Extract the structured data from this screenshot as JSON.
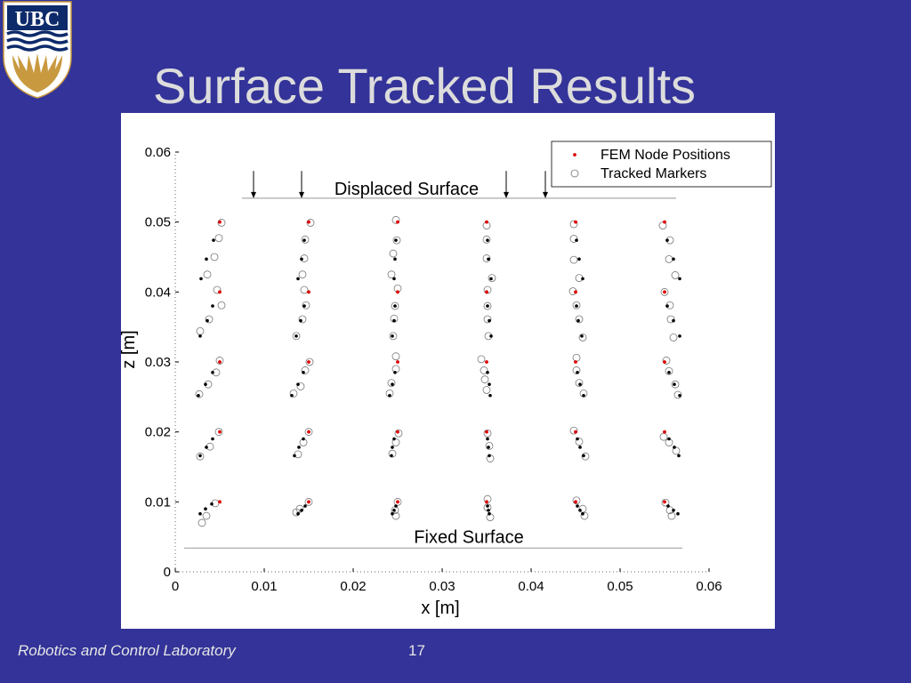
{
  "slide": {
    "title": "Surface Tracked Results",
    "logo_text": "UBC",
    "footer_lab": "Robotics and Control Laboratory",
    "page_number": "17"
  },
  "colors": {
    "background": "#333399",
    "title": "#dcdcdc",
    "fem": "#dd0000",
    "tracked": "#000000",
    "logo_blue": "#0d2a6b",
    "logo_gold": "#c8993f"
  },
  "chart_data": {
    "type": "scatter",
    "title": "",
    "xlabel": "x [m]",
    "ylabel": "z [m]",
    "xlim": [
      0,
      0.06
    ],
    "ylim": [
      0,
      0.06
    ],
    "xticks": [
      "0",
      "0.01",
      "0.02",
      "0.03",
      "0.04",
      "0.05",
      "0.06"
    ],
    "yticks": [
      "0",
      "0.01",
      "0.02",
      "0.03",
      "0.04",
      "0.05",
      "0.06"
    ],
    "grid": false,
    "legend_position": "top-right",
    "legend": [
      "FEM Node Positions",
      "Tracked Markers"
    ],
    "annotations": {
      "displaced_surface": "Displaced Surface",
      "fixed_surface": "Fixed Surface"
    },
    "surface_arrows_x": [
      0.0088,
      0.0142,
      0.0372,
      0.0416
    ],
    "fem_nodes": [
      [
        0.005,
        0.05
      ],
      [
        0.015,
        0.05
      ],
      [
        0.025,
        0.05
      ],
      [
        0.035,
        0.05
      ],
      [
        0.045,
        0.05
      ],
      [
        0.055,
        0.05
      ],
      [
        0.005,
        0.04
      ],
      [
        0.015,
        0.04
      ],
      [
        0.025,
        0.04
      ],
      [
        0.035,
        0.04
      ],
      [
        0.045,
        0.04
      ],
      [
        0.055,
        0.04
      ],
      [
        0.005,
        0.03
      ],
      [
        0.015,
        0.03
      ],
      [
        0.025,
        0.03
      ],
      [
        0.035,
        0.03
      ],
      [
        0.045,
        0.03
      ],
      [
        0.055,
        0.03
      ],
      [
        0.005,
        0.02
      ],
      [
        0.015,
        0.02
      ],
      [
        0.025,
        0.02
      ],
      [
        0.035,
        0.02
      ],
      [
        0.045,
        0.02
      ],
      [
        0.055,
        0.02
      ],
      [
        0.005,
        0.01
      ],
      [
        0.015,
        0.01
      ],
      [
        0.025,
        0.01
      ],
      [
        0.035,
        0.01
      ],
      [
        0.045,
        0.01
      ],
      [
        0.055,
        0.01
      ]
    ],
    "tracked_filled": [
      [
        0.0043,
        0.0474
      ],
      [
        0.0035,
        0.0447
      ],
      [
        0.0029,
        0.0419
      ],
      [
        0.0042,
        0.038
      ],
      [
        0.0036,
        0.0359
      ],
      [
        0.0028,
        0.0337
      ],
      [
        0.0042,
        0.0285
      ],
      [
        0.0034,
        0.0268
      ],
      [
        0.0026,
        0.0252
      ],
      [
        0.0042,
        0.019
      ],
      [
        0.0035,
        0.0178
      ],
      [
        0.0028,
        0.0166
      ],
      [
        0.0041,
        0.0097
      ],
      [
        0.0034,
        0.009
      ],
      [
        0.0028,
        0.0083
      ],
      [
        0.0145,
        0.0474
      ],
      [
        0.0142,
        0.0447
      ],
      [
        0.0138,
        0.0419
      ],
      [
        0.0145,
        0.038
      ],
      [
        0.0141,
        0.0359
      ],
      [
        0.0136,
        0.0337
      ],
      [
        0.0144,
        0.0285
      ],
      [
        0.0138,
        0.0268
      ],
      [
        0.0131,
        0.0252
      ],
      [
        0.0144,
        0.019
      ],
      [
        0.0139,
        0.0178
      ],
      [
        0.0134,
        0.0166
      ],
      [
        0.0146,
        0.0094
      ],
      [
        0.0142,
        0.0088
      ],
      [
        0.0138,
        0.0083
      ],
      [
        0.0248,
        0.0474
      ],
      [
        0.0247,
        0.0447
      ],
      [
        0.0246,
        0.0419
      ],
      [
        0.0247,
        0.038
      ],
      [
        0.0246,
        0.0359
      ],
      [
        0.0244,
        0.0337
      ],
      [
        0.0247,
        0.0285
      ],
      [
        0.0244,
        0.0268
      ],
      [
        0.0241,
        0.0252
      ],
      [
        0.0246,
        0.019
      ],
      [
        0.0244,
        0.0178
      ],
      [
        0.0243,
        0.0166
      ],
      [
        0.0248,
        0.0094
      ],
      [
        0.0246,
        0.0088
      ],
      [
        0.0244,
        0.0083
      ],
      [
        0.0351,
        0.0474
      ],
      [
        0.0352,
        0.0447
      ],
      [
        0.0355,
        0.0419
      ],
      [
        0.0351,
        0.038
      ],
      [
        0.0353,
        0.0359
      ],
      [
        0.0355,
        0.0337
      ],
      [
        0.0351,
        0.0285
      ],
      [
        0.0353,
        0.0268
      ],
      [
        0.0354,
        0.0252
      ],
      [
        0.0351,
        0.019
      ],
      [
        0.0352,
        0.0178
      ],
      [
        0.0353,
        0.0166
      ],
      [
        0.0351,
        0.0094
      ],
      [
        0.0352,
        0.0088
      ],
      [
        0.0353,
        0.0083
      ],
      [
        0.0451,
        0.0474
      ],
      [
        0.0454,
        0.0447
      ],
      [
        0.0458,
        0.0419
      ],
      [
        0.0451,
        0.038
      ],
      [
        0.0453,
        0.0359
      ],
      [
        0.0457,
        0.0337
      ],
      [
        0.0452,
        0.0285
      ],
      [
        0.0455,
        0.0268
      ],
      [
        0.0459,
        0.0252
      ],
      [
        0.0452,
        0.019
      ],
      [
        0.0455,
        0.0178
      ],
      [
        0.0459,
        0.0166
      ],
      [
        0.0452,
        0.0094
      ],
      [
        0.0455,
        0.0088
      ],
      [
        0.0458,
        0.0083
      ],
      [
        0.0553,
        0.0474
      ],
      [
        0.056,
        0.0447
      ],
      [
        0.0567,
        0.0419
      ],
      [
        0.0553,
        0.038
      ],
      [
        0.056,
        0.0359
      ],
      [
        0.0567,
        0.0337
      ],
      [
        0.0555,
        0.0285
      ],
      [
        0.0561,
        0.0268
      ],
      [
        0.0567,
        0.0252
      ],
      [
        0.0555,
        0.019
      ],
      [
        0.0561,
        0.0178
      ],
      [
        0.0566,
        0.0166
      ],
      [
        0.0554,
        0.0094
      ],
      [
        0.056,
        0.0088
      ],
      [
        0.0565,
        0.0083
      ]
    ],
    "tracked_markers": [
      [
        0.0052,
        0.0499
      ],
      [
        0.0049,
        0.0477
      ],
      [
        0.0044,
        0.045
      ],
      [
        0.0036,
        0.0425
      ],
      [
        0.0047,
        0.0403
      ],
      [
        0.0052,
        0.0381
      ],
      [
        0.0038,
        0.0361
      ],
      [
        0.0028,
        0.0344
      ],
      [
        0.005,
        0.0302
      ],
      [
        0.0046,
        0.0285
      ],
      [
        0.0037,
        0.0268
      ],
      [
        0.0027,
        0.0254
      ],
      [
        0.0049,
        0.02
      ],
      [
        0.0039,
        0.0179
      ],
      [
        0.0028,
        0.0165
      ],
      [
        0.0045,
        0.0098
      ],
      [
        0.0035,
        0.008
      ],
      [
        0.003,
        0.007
      ],
      [
        0.0152,
        0.0499
      ],
      [
        0.0146,
        0.0475
      ],
      [
        0.0145,
        0.0448
      ],
      [
        0.0143,
        0.0425
      ],
      [
        0.0145,
        0.0403
      ],
      [
        0.0147,
        0.0381
      ],
      [
        0.0143,
        0.0361
      ],
      [
        0.0136,
        0.0337
      ],
      [
        0.0151,
        0.03
      ],
      [
        0.0146,
        0.0288
      ],
      [
        0.0141,
        0.0265
      ],
      [
        0.0133,
        0.0255
      ],
      [
        0.015,
        0.02
      ],
      [
        0.0144,
        0.0185
      ],
      [
        0.0138,
        0.0168
      ],
      [
        0.015,
        0.01
      ],
      [
        0.014,
        0.009
      ],
      [
        0.0136,
        0.0085
      ],
      [
        0.0248,
        0.0503
      ],
      [
        0.0249,
        0.0474
      ],
      [
        0.0245,
        0.0455
      ],
      [
        0.0243,
        0.0425
      ],
      [
        0.025,
        0.0405
      ],
      [
        0.0247,
        0.038
      ],
      [
        0.0246,
        0.0362
      ],
      [
        0.0245,
        0.0337
      ],
      [
        0.0248,
        0.0308
      ],
      [
        0.0248,
        0.029
      ],
      [
        0.0243,
        0.027
      ],
      [
        0.0241,
        0.0255
      ],
      [
        0.0251,
        0.0198
      ],
      [
        0.0248,
        0.0185
      ],
      [
        0.0244,
        0.0169
      ],
      [
        0.025,
        0.01
      ],
      [
        0.0247,
        0.0088
      ],
      [
        0.0248,
        0.008
      ],
      [
        0.035,
        0.0495
      ],
      [
        0.035,
        0.0475
      ],
      [
        0.035,
        0.0448
      ],
      [
        0.0356,
        0.042
      ],
      [
        0.0351,
        0.0403
      ],
      [
        0.0351,
        0.038
      ],
      [
        0.0351,
        0.0361
      ],
      [
        0.0352,
        0.0337
      ],
      [
        0.0344,
        0.0304
      ],
      [
        0.0347,
        0.0288
      ],
      [
        0.0348,
        0.0275
      ],
      [
        0.035,
        0.026
      ],
      [
        0.0351,
        0.0198
      ],
      [
        0.0353,
        0.018
      ],
      [
        0.0354,
        0.0162
      ],
      [
        0.0351,
        0.0104
      ],
      [
        0.0351,
        0.0092
      ],
      [
        0.0354,
        0.0078
      ],
      [
        0.0448,
        0.0497
      ],
      [
        0.0448,
        0.0476
      ],
      [
        0.0448,
        0.0446
      ],
      [
        0.0454,
        0.042
      ],
      [
        0.0447,
        0.0401
      ],
      [
        0.0451,
        0.0381
      ],
      [
        0.0454,
        0.0361
      ],
      [
        0.0458,
        0.0335
      ],
      [
        0.0451,
        0.0306
      ],
      [
        0.0451,
        0.0288
      ],
      [
        0.0454,
        0.027
      ],
      [
        0.0459,
        0.0255
      ],
      [
        0.0448,
        0.0202
      ],
      [
        0.0454,
        0.0186
      ],
      [
        0.0461,
        0.0165
      ],
      [
        0.0451,
        0.0102
      ],
      [
        0.0458,
        0.009
      ],
      [
        0.046,
        0.008
      ],
      [
        0.0548,
        0.0495
      ],
      [
        0.0556,
        0.0474
      ],
      [
        0.0555,
        0.0447
      ],
      [
        0.0562,
        0.0424
      ],
      [
        0.055,
        0.04
      ],
      [
        0.0556,
        0.0381
      ],
      [
        0.0557,
        0.0361
      ],
      [
        0.056,
        0.0335
      ],
      [
        0.0552,
        0.0302
      ],
      [
        0.0555,
        0.0287
      ],
      [
        0.0562,
        0.0268
      ],
      [
        0.0565,
        0.0253
      ],
      [
        0.0549,
        0.0193
      ],
      [
        0.0555,
        0.0185
      ],
      [
        0.0563,
        0.0173
      ],
      [
        0.0551,
        0.0099
      ],
      [
        0.0556,
        0.0088
      ],
      [
        0.0558,
        0.008
      ]
    ]
  }
}
